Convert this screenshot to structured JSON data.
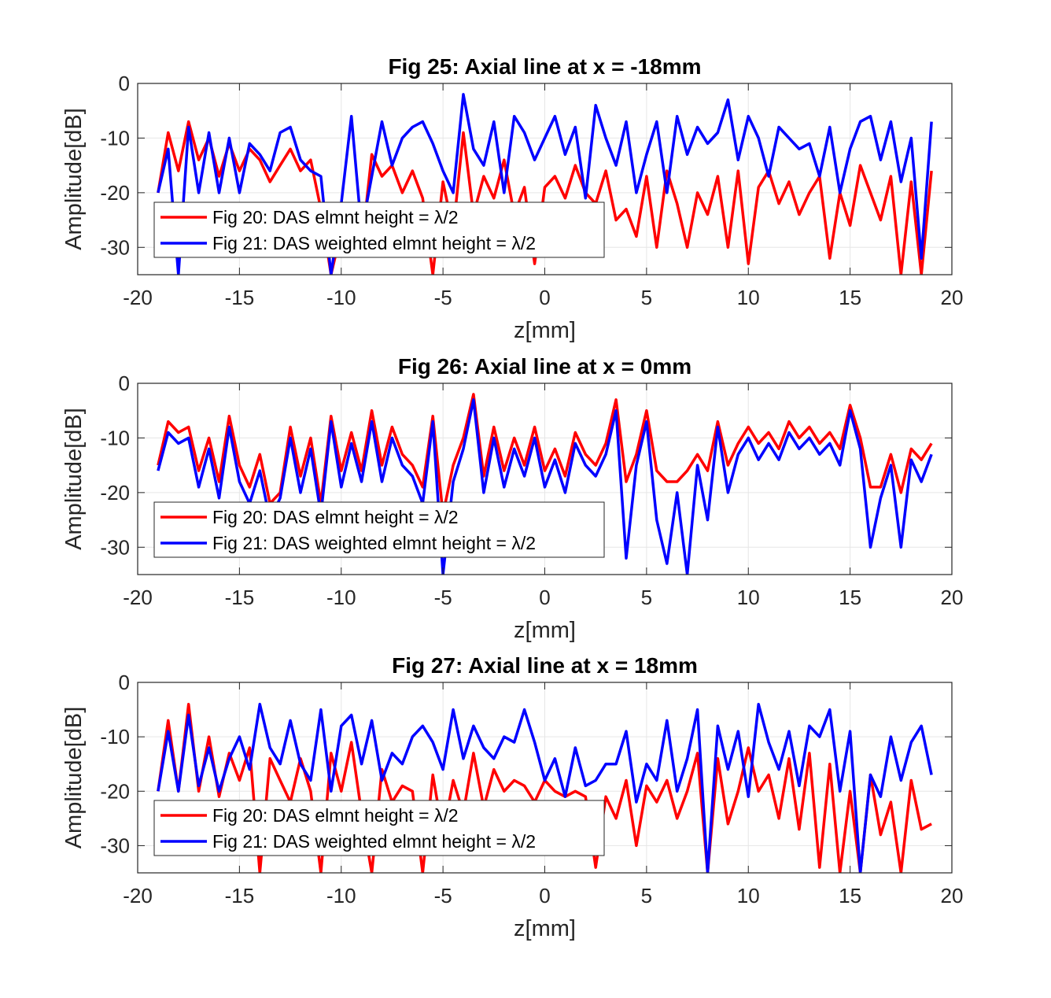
{
  "chart_data": [
    {
      "type": "line",
      "title": "Fig 25: Axial line at x = -18mm",
      "xlabel": "z[mm]",
      "ylabel": "Amplitude[dB]",
      "xlim": [
        -20,
        20
      ],
      "ylim": [
        -35,
        0
      ],
      "xticks": [
        "-20",
        "-15",
        "-10",
        "-5",
        "0",
        "5",
        "10",
        "15",
        "20"
      ],
      "yticks": [
        "0",
        "-10",
        "-20",
        "-30"
      ],
      "grid": true,
      "legend": "lower-left",
      "series": [
        {
          "name": "Fig 20: DAS elmnt height = λ/2",
          "color": "#ff0000",
          "x": [
            -19.0,
            -18.5,
            -18.0,
            -17.5,
            -17.0,
            -16.5,
            -16.0,
            -15.5,
            -15.0,
            -14.5,
            -14.0,
            -13.5,
            -13.0,
            -12.5,
            -12.0,
            -11.5,
            -11.0,
            -10.5,
            -10.0,
            -9.5,
            -9.0,
            -8.5,
            -8.0,
            -7.5,
            -7.0,
            -6.5,
            -6.0,
            -5.5,
            -5.0,
            -4.5,
            -4.0,
            -3.5,
            -3.0,
            -2.5,
            -2.0,
            -1.5,
            -1.0,
            -0.5,
            0.0,
            0.5,
            1.0,
            1.5,
            2.0,
            2.5,
            3.0,
            3.5,
            4.0,
            4.5,
            5.0,
            5.5,
            6.0,
            6.5,
            7.0,
            7.5,
            8.0,
            8.5,
            9.0,
            9.5,
            10.0,
            10.5,
            11.0,
            11.5,
            12.0,
            12.5,
            13.0,
            13.5,
            14.0,
            14.5,
            15.0,
            15.5,
            16.0,
            16.5,
            17.0,
            17.5,
            18.0,
            18.5,
            19.0
          ],
          "y": [
            -20,
            -9,
            -16,
            -7,
            -14,
            -10,
            -17,
            -11,
            -16,
            -12,
            -14,
            -18,
            -15,
            -12,
            -16,
            -14,
            -23,
            -35,
            -27,
            -29,
            -30,
            -13,
            -17,
            -15,
            -20,
            -16,
            -21,
            -35,
            -18,
            -27,
            -9,
            -24,
            -17,
            -21,
            -14,
            -24,
            -19,
            -33,
            -19,
            -17,
            -21,
            -15,
            -20,
            -22,
            -16,
            -25,
            -23,
            -28,
            -17,
            -30,
            -16,
            -22,
            -30,
            -20,
            -24,
            -17,
            -30,
            -16,
            -33,
            -19,
            -16,
            -22,
            -18,
            -24,
            -20,
            -17,
            -32,
            -20,
            -26,
            -15,
            -20,
            -25,
            -17,
            -35,
            -18,
            -35,
            -16
          ]
        },
        {
          "name": "Fig 21: DAS weighted elmnt height = λ/2",
          "color": "#0000ff",
          "x": [
            -19.0,
            -18.5,
            -18.0,
            -17.5,
            -17.0,
            -16.5,
            -16.0,
            -15.5,
            -15.0,
            -14.5,
            -14.0,
            -13.5,
            -13.0,
            -12.5,
            -12.0,
            -11.5,
            -11.0,
            -10.5,
            -10.0,
            -9.5,
            -9.0,
            -8.5,
            -8.0,
            -7.5,
            -7.0,
            -6.5,
            -6.0,
            -5.5,
            -5.0,
            -4.5,
            -4.0,
            -3.5,
            -3.0,
            -2.5,
            -2.0,
            -1.5,
            -1.0,
            -0.5,
            0.0,
            0.5,
            1.0,
            1.5,
            2.0,
            2.5,
            3.0,
            3.5,
            4.0,
            4.5,
            5.0,
            5.5,
            6.0,
            6.5,
            7.0,
            7.5,
            8.0,
            8.5,
            9.0,
            9.5,
            10.0,
            10.5,
            11.0,
            11.5,
            12.0,
            12.5,
            13.0,
            13.5,
            14.0,
            14.5,
            15.0,
            15.5,
            16.0,
            16.5,
            17.0,
            17.5,
            18.0,
            18.5,
            19.0
          ],
          "y": [
            -20,
            -12,
            -35,
            -8,
            -20,
            -9,
            -20,
            -10,
            -20,
            -11,
            -13,
            -16,
            -9,
            -8,
            -14,
            -16,
            -17,
            -35,
            -22,
            -6,
            -27,
            -17,
            -7,
            -15,
            -10,
            -8,
            -7,
            -11,
            -16,
            -20,
            -2,
            -12,
            -15,
            -7,
            -20,
            -6,
            -9,
            -14,
            -10,
            -6,
            -13,
            -8,
            -21,
            -4,
            -10,
            -15,
            -7,
            -20,
            -13,
            -7,
            -20,
            -6,
            -13,
            -8,
            -11,
            -9,
            -3,
            -14,
            -6,
            -10,
            -17,
            -8,
            -10,
            -12,
            -11,
            -17,
            -8,
            -20,
            -12,
            -7,
            -6,
            -14,
            -7,
            -18,
            -10,
            -32,
            -7
          ]
        }
      ]
    },
    {
      "type": "line",
      "title": "Fig 26: Axial line at x = 0mm",
      "xlabel": "z[mm]",
      "ylabel": "Amplitude[dB]",
      "xlim": [
        -20,
        20
      ],
      "ylim": [
        -35,
        0
      ],
      "xticks": [
        "-20",
        "-15",
        "-10",
        "-5",
        "0",
        "5",
        "10",
        "15",
        "20"
      ],
      "yticks": [
        "0",
        "-10",
        "-20",
        "-30"
      ],
      "grid": true,
      "legend": "lower-left",
      "series": [
        {
          "name": "Fig 20: DAS elmnt height = λ/2",
          "color": "#ff0000",
          "x": [
            -19.0,
            -18.5,
            -18.0,
            -17.5,
            -17.0,
            -16.5,
            -16.0,
            -15.5,
            -15.0,
            -14.5,
            -14.0,
            -13.5,
            -13.0,
            -12.5,
            -12.0,
            -11.5,
            -11.0,
            -10.5,
            -10.0,
            -9.5,
            -9.0,
            -8.5,
            -8.0,
            -7.5,
            -7.0,
            -6.5,
            -6.0,
            -5.5,
            -5.0,
            -4.5,
            -4.0,
            -3.5,
            -3.0,
            -2.5,
            -2.0,
            -1.5,
            -1.0,
            -0.5,
            0.0,
            0.5,
            1.0,
            1.5,
            2.0,
            2.5,
            3.0,
            3.5,
            4.0,
            4.5,
            5.0,
            5.5,
            6.0,
            6.5,
            7.0,
            7.5,
            8.0,
            8.5,
            9.0,
            9.5,
            10.0,
            10.5,
            11.0,
            11.5,
            12.0,
            12.5,
            13.0,
            13.5,
            14.0,
            14.5,
            15.0,
            15.5,
            16.0,
            16.5,
            17.0,
            17.5,
            18.0,
            18.5,
            19.0
          ],
          "y": [
            -15,
            -7,
            -9,
            -8,
            -16,
            -10,
            -18,
            -6,
            -15,
            -19,
            -13,
            -22,
            -20,
            -8,
            -17,
            -10,
            -22,
            -6,
            -16,
            -9,
            -16,
            -5,
            -15,
            -8,
            -13,
            -15,
            -19,
            -6,
            -24,
            -15,
            -10,
            -2,
            -17,
            -8,
            -16,
            -10,
            -15,
            -8,
            -16,
            -12,
            -17,
            -9,
            -13,
            -15,
            -11,
            -3,
            -18,
            -13,
            -5,
            -16,
            -18,
            -18,
            -16,
            -13,
            -16,
            -7,
            -15,
            -11,
            -8,
            -11,
            -9,
            -12,
            -7,
            -10,
            -8,
            -11,
            -9,
            -12,
            -4,
            -10,
            -19,
            -19,
            -13,
            -20,
            -12,
            -14,
            -11
          ]
        },
        {
          "name": "Fig 21: DAS weighted elmnt height = λ/2",
          "color": "#0000ff",
          "x": [
            -19.0,
            -18.5,
            -18.0,
            -17.5,
            -17.0,
            -16.5,
            -16.0,
            -15.5,
            -15.0,
            -14.5,
            -14.0,
            -13.5,
            -13.0,
            -12.5,
            -12.0,
            -11.5,
            -11.0,
            -10.5,
            -10.0,
            -9.5,
            -9.0,
            -8.5,
            -8.0,
            -7.5,
            -7.0,
            -6.5,
            -6.0,
            -5.5,
            -5.0,
            -4.5,
            -4.0,
            -3.5,
            -3.0,
            -2.5,
            -2.0,
            -1.5,
            -1.0,
            -0.5,
            0.0,
            0.5,
            1.0,
            1.5,
            2.0,
            2.5,
            3.0,
            3.5,
            4.0,
            4.5,
            5.0,
            5.5,
            6.0,
            6.5,
            7.0,
            7.5,
            8.0,
            8.5,
            9.0,
            9.5,
            10.0,
            10.5,
            11.0,
            11.5,
            12.0,
            12.5,
            13.0,
            13.5,
            14.0,
            14.5,
            15.0,
            15.5,
            16.0,
            16.5,
            17.0,
            17.5,
            18.0,
            18.5,
            19.0
          ],
          "y": [
            -16,
            -9,
            -11,
            -10,
            -19,
            -12,
            -21,
            -8,
            -18,
            -22,
            -16,
            -25,
            -21,
            -10,
            -20,
            -12,
            -24,
            -7,
            -19,
            -11,
            -18,
            -7,
            -18,
            -10,
            -15,
            -17,
            -22,
            -7,
            -35,
            -18,
            -12,
            -3,
            -20,
            -10,
            -19,
            -12,
            -17,
            -10,
            -19,
            -14,
            -20,
            -11,
            -15,
            -17,
            -13,
            -5,
            -32,
            -15,
            -7,
            -25,
            -33,
            -20,
            -35,
            -15,
            -25,
            -8,
            -20,
            -13,
            -10,
            -14,
            -11,
            -14,
            -9,
            -12,
            -10,
            -13,
            -11,
            -15,
            -5,
            -12,
            -30,
            -21,
            -15,
            -30,
            -14,
            -18,
            -13
          ]
        }
      ]
    },
    {
      "type": "line",
      "title": "Fig 27: Axial line at x = 18mm",
      "xlabel": "z[mm]",
      "ylabel": "Amplitude[dB]",
      "xlim": [
        -20,
        20
      ],
      "ylim": [
        -35,
        0
      ],
      "xticks": [
        "-20",
        "-15",
        "-10",
        "-5",
        "0",
        "5",
        "10",
        "15",
        "20"
      ],
      "yticks": [
        "0",
        "-10",
        "-20",
        "-30"
      ],
      "grid": true,
      "legend": "lower-left",
      "series": [
        {
          "name": "Fig 20: DAS elmnt height = λ/2",
          "color": "#ff0000",
          "x": [
            -19.0,
            -18.5,
            -18.0,
            -17.5,
            -17.0,
            -16.5,
            -16.0,
            -15.5,
            -15.0,
            -14.5,
            -14.0,
            -13.5,
            -13.0,
            -12.5,
            -12.0,
            -11.5,
            -11.0,
            -10.5,
            -10.0,
            -9.5,
            -9.0,
            -8.5,
            -8.0,
            -7.5,
            -7.0,
            -6.5,
            -6.0,
            -5.5,
            -5.0,
            -4.5,
            -4.0,
            -3.5,
            -3.0,
            -2.5,
            -2.0,
            -1.5,
            -1.0,
            -0.5,
            0.0,
            0.5,
            1.0,
            1.5,
            2.0,
            2.5,
            3.0,
            3.5,
            4.0,
            4.5,
            5.0,
            5.5,
            6.0,
            6.5,
            7.0,
            7.5,
            8.0,
            8.5,
            9.0,
            9.5,
            10.0,
            10.5,
            11.0,
            11.5,
            12.0,
            12.5,
            13.0,
            13.5,
            14.0,
            14.5,
            15.0,
            15.5,
            16.0,
            16.5,
            17.0,
            17.5,
            18.0,
            18.5,
            19.0
          ],
          "y": [
            -20,
            -7,
            -20,
            -4,
            -20,
            -10,
            -21,
            -13,
            -18,
            -12,
            -35,
            -14,
            -18,
            -22,
            -14,
            -20,
            -35,
            -13,
            -20,
            -11,
            -24,
            -35,
            -16,
            -22,
            -19,
            -20,
            -35,
            -17,
            -28,
            -18,
            -24,
            -13,
            -23,
            -16,
            -20,
            -18,
            -19,
            -22,
            -18,
            -20,
            -21,
            -20,
            -21,
            -34,
            -21,
            -25,
            -18,
            -30,
            -19,
            -22,
            -18,
            -25,
            -20,
            -13,
            -35,
            -14,
            -26,
            -20,
            -12,
            -20,
            -17,
            -25,
            -14,
            -27,
            -13,
            -34,
            -15,
            -35,
            -20,
            -35,
            -17,
            -28,
            -22,
            -35,
            -18,
            -27,
            -26
          ]
        },
        {
          "name": "Fig 21: DAS weighted elmnt height = λ/2",
          "color": "#0000ff",
          "x": [
            -19.0,
            -18.5,
            -18.0,
            -17.5,
            -17.0,
            -16.5,
            -16.0,
            -15.5,
            -15.0,
            -14.5,
            -14.0,
            -13.5,
            -13.0,
            -12.5,
            -12.0,
            -11.5,
            -11.0,
            -10.5,
            -10.0,
            -9.5,
            -9.0,
            -8.5,
            -8.0,
            -7.5,
            -7.0,
            -6.5,
            -6.0,
            -5.5,
            -5.0,
            -4.5,
            -4.0,
            -3.5,
            -3.0,
            -2.5,
            -2.0,
            -1.5,
            -1.0,
            -0.5,
            0.0,
            0.5,
            1.0,
            1.5,
            2.0,
            2.5,
            3.0,
            3.5,
            4.0,
            4.5,
            5.0,
            5.5,
            6.0,
            6.5,
            7.0,
            7.5,
            8.0,
            8.5,
            9.0,
            9.5,
            10.0,
            10.5,
            11.0,
            11.5,
            12.0,
            12.5,
            13.0,
            13.5,
            14.0,
            14.5,
            15.0,
            15.5,
            16.0,
            16.5,
            17.0,
            17.5,
            18.0,
            18.5,
            19.0
          ],
          "y": [
            -20,
            -9,
            -20,
            -6,
            -19,
            -12,
            -20,
            -14,
            -10,
            -16,
            -4,
            -12,
            -15,
            -7,
            -15,
            -18,
            -5,
            -20,
            -8,
            -6,
            -15,
            -7,
            -18,
            -13,
            -15,
            -10,
            -8,
            -11,
            -16,
            -5,
            -14,
            -8,
            -12,
            -14,
            -10,
            -11,
            -5,
            -11,
            -18,
            -14,
            -21,
            -12,
            -19,
            -18,
            -15,
            -15,
            -9,
            -22,
            -15,
            -18,
            -7,
            -20,
            -14,
            -5,
            -35,
            -8,
            -16,
            -9,
            -21,
            -4,
            -11,
            -16,
            -9,
            -19,
            -8,
            -10,
            -5,
            -20,
            -9,
            -35,
            -17,
            -21,
            -10,
            -18,
            -11,
            -8,
            -17
          ]
        }
      ]
    }
  ]
}
